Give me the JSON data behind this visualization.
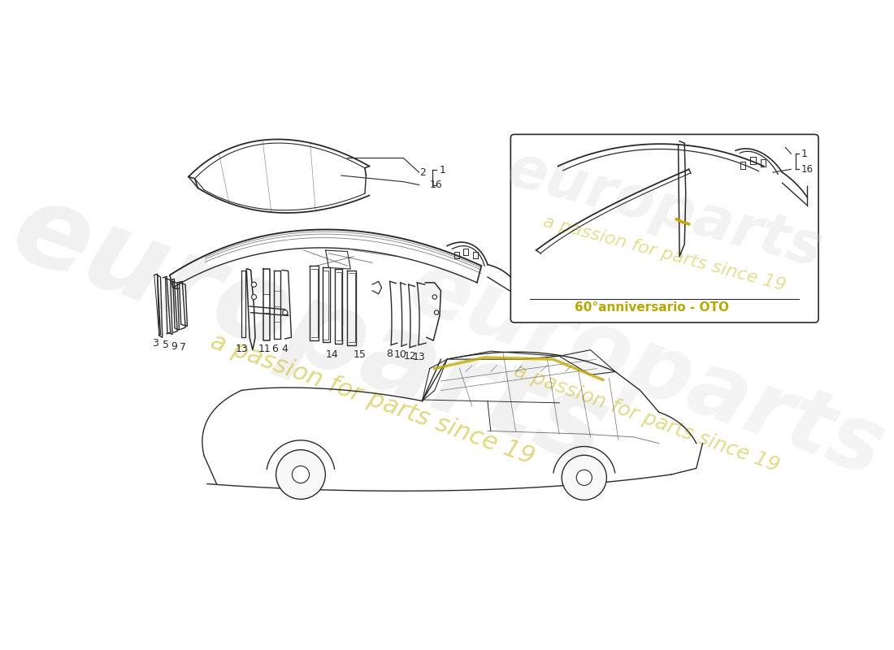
{
  "background_color": "#ffffff",
  "line_color": "#2a2a2a",
  "watermark_color": "#cccccc",
  "watermark_color2": "#d4c84a",
  "anno_color": "#b8a800",
  "inset_label": "60°anniversario - OTO",
  "watermark_text1": "europarts",
  "watermark_text2": "a passion for parts since 19",
  "fig_width": 11.0,
  "fig_height": 8.0,
  "dpi": 100
}
